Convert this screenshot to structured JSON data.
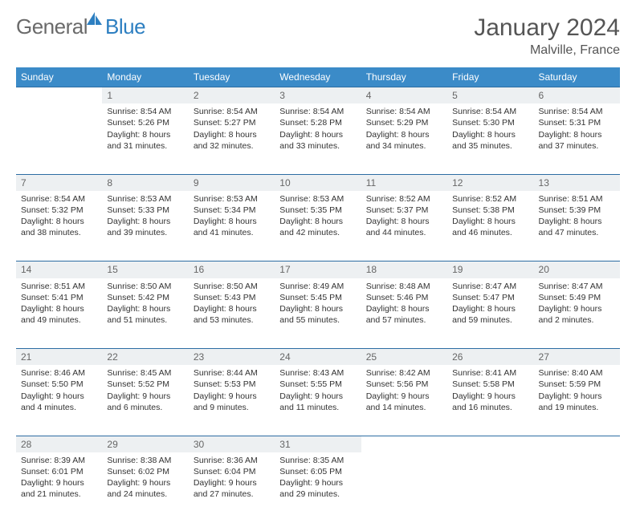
{
  "brand": {
    "part1": "General",
    "part2": "Blue"
  },
  "title": "January 2024",
  "location": "Malville, France",
  "colors": {
    "header_bg": "#3b8bc8",
    "header_border": "#2d6da3",
    "daynum_bg": "#edf0f2",
    "text": "#333333",
    "brand_gray": "#6a6a6a",
    "brand_blue": "#2d7fc1"
  },
  "weekdays": [
    "Sunday",
    "Monday",
    "Tuesday",
    "Wednesday",
    "Thursday",
    "Friday",
    "Saturday"
  ],
  "weeks": [
    {
      "nums": [
        "",
        "1",
        "2",
        "3",
        "4",
        "5",
        "6"
      ],
      "cells": [
        "",
        "Sunrise: 8:54 AM\nSunset: 5:26 PM\nDaylight: 8 hours and 31 minutes.",
        "Sunrise: 8:54 AM\nSunset: 5:27 PM\nDaylight: 8 hours and 32 minutes.",
        "Sunrise: 8:54 AM\nSunset: 5:28 PM\nDaylight: 8 hours and 33 minutes.",
        "Sunrise: 8:54 AM\nSunset: 5:29 PM\nDaylight: 8 hours and 34 minutes.",
        "Sunrise: 8:54 AM\nSunset: 5:30 PM\nDaylight: 8 hours and 35 minutes.",
        "Sunrise: 8:54 AM\nSunset: 5:31 PM\nDaylight: 8 hours and 37 minutes."
      ]
    },
    {
      "nums": [
        "7",
        "8",
        "9",
        "10",
        "11",
        "12",
        "13"
      ],
      "cells": [
        "Sunrise: 8:54 AM\nSunset: 5:32 PM\nDaylight: 8 hours and 38 minutes.",
        "Sunrise: 8:53 AM\nSunset: 5:33 PM\nDaylight: 8 hours and 39 minutes.",
        "Sunrise: 8:53 AM\nSunset: 5:34 PM\nDaylight: 8 hours and 41 minutes.",
        "Sunrise: 8:53 AM\nSunset: 5:35 PM\nDaylight: 8 hours and 42 minutes.",
        "Sunrise: 8:52 AM\nSunset: 5:37 PM\nDaylight: 8 hours and 44 minutes.",
        "Sunrise: 8:52 AM\nSunset: 5:38 PM\nDaylight: 8 hours and 46 minutes.",
        "Sunrise: 8:51 AM\nSunset: 5:39 PM\nDaylight: 8 hours and 47 minutes."
      ]
    },
    {
      "nums": [
        "14",
        "15",
        "16",
        "17",
        "18",
        "19",
        "20"
      ],
      "cells": [
        "Sunrise: 8:51 AM\nSunset: 5:41 PM\nDaylight: 8 hours and 49 minutes.",
        "Sunrise: 8:50 AM\nSunset: 5:42 PM\nDaylight: 8 hours and 51 minutes.",
        "Sunrise: 8:50 AM\nSunset: 5:43 PM\nDaylight: 8 hours and 53 minutes.",
        "Sunrise: 8:49 AM\nSunset: 5:45 PM\nDaylight: 8 hours and 55 minutes.",
        "Sunrise: 8:48 AM\nSunset: 5:46 PM\nDaylight: 8 hours and 57 minutes.",
        "Sunrise: 8:47 AM\nSunset: 5:47 PM\nDaylight: 8 hours and 59 minutes.",
        "Sunrise: 8:47 AM\nSunset: 5:49 PM\nDaylight: 9 hours and 2 minutes."
      ]
    },
    {
      "nums": [
        "21",
        "22",
        "23",
        "24",
        "25",
        "26",
        "27"
      ],
      "cells": [
        "Sunrise: 8:46 AM\nSunset: 5:50 PM\nDaylight: 9 hours and 4 minutes.",
        "Sunrise: 8:45 AM\nSunset: 5:52 PM\nDaylight: 9 hours and 6 minutes.",
        "Sunrise: 8:44 AM\nSunset: 5:53 PM\nDaylight: 9 hours and 9 minutes.",
        "Sunrise: 8:43 AM\nSunset: 5:55 PM\nDaylight: 9 hours and 11 minutes.",
        "Sunrise: 8:42 AM\nSunset: 5:56 PM\nDaylight: 9 hours and 14 minutes.",
        "Sunrise: 8:41 AM\nSunset: 5:58 PM\nDaylight: 9 hours and 16 minutes.",
        "Sunrise: 8:40 AM\nSunset: 5:59 PM\nDaylight: 9 hours and 19 minutes."
      ]
    },
    {
      "nums": [
        "28",
        "29",
        "30",
        "31",
        "",
        "",
        ""
      ],
      "cells": [
        "Sunrise: 8:39 AM\nSunset: 6:01 PM\nDaylight: 9 hours and 21 minutes.",
        "Sunrise: 8:38 AM\nSunset: 6:02 PM\nDaylight: 9 hours and 24 minutes.",
        "Sunrise: 8:36 AM\nSunset: 6:04 PM\nDaylight: 9 hours and 27 minutes.",
        "Sunrise: 8:35 AM\nSunset: 6:05 PM\nDaylight: 9 hours and 29 minutes.",
        "",
        "",
        ""
      ]
    }
  ]
}
